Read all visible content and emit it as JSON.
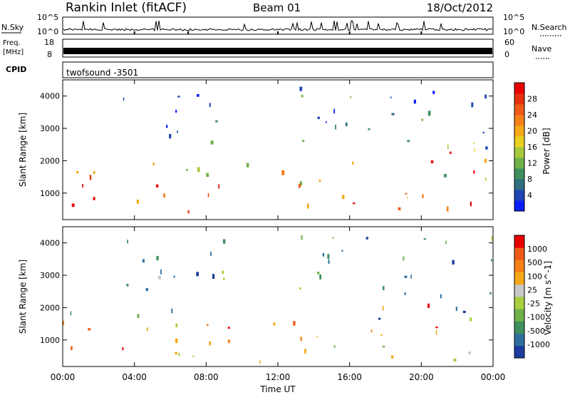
{
  "header": {
    "title": "Rankin Inlet (fitACF)",
    "beam": "Beam 01",
    "date": "18/Oct/2012"
  },
  "strip_panels": {
    "noise": {
      "left_label": "N.Sky",
      "right_label": "N.Search",
      "left_ticks": [
        "10^5",
        "10^0"
      ],
      "right_ticks": [
        "10^5",
        "10^0"
      ],
      "right_legend_line": "dotted"
    },
    "freq": {
      "left_label_line1": "Freq.",
      "left_label_line2": "[MHz]",
      "left_ticks": [
        "18",
        "8"
      ],
      "right_label": "Nave",
      "right_ticks": [
        "60",
        "0"
      ],
      "right_legend_line": "dotted"
    },
    "cpid": {
      "label": "CPID",
      "value": "twofsound -3501"
    }
  },
  "colors": {
    "noise_line": "#000000",
    "freq_band": "#000000",
    "blank": "#ffffff"
  },
  "chart_data": [
    {
      "type": "heatmap",
      "ylabel": "Slant Range [km]",
      "xlabel": "",
      "x_ticks": [
        "00:00",
        "04:00",
        "08:00",
        "12:00",
        "16:00",
        "20:00",
        "00:00"
      ],
      "y_ticks": [
        1000,
        2000,
        3000,
        4000
      ],
      "xlim_hours": [
        0,
        24
      ],
      "ylim_km": [
        180,
        4500
      ],
      "colorbar": {
        "label": "Power [dB]",
        "ticks": [
          "4",
          "8",
          "12",
          "16",
          "20",
          "24",
          "28"
        ],
        "colors": [
          "#0a1eff",
          "#1e46b4",
          "#2f6f7e",
          "#3f8f5e",
          "#6fb04a",
          "#a8c83a",
          "#e8d020",
          "#f5a818",
          "#f58018",
          "#f05a18",
          "#e83010",
          "#e80000"
        ]
      },
      "regions": [
        {
          "h0": 0.0,
          "h1": 9.5,
          "r0": 600,
          "r1": 1700,
          "v": 0.82
        },
        {
          "h0": 0.3,
          "h1": 9.0,
          "r0": 1500,
          "r1": 2100,
          "v": 0.45
        },
        {
          "h0": 4.8,
          "h1": 8.0,
          "r0": 180,
          "r1": 600,
          "v": 0.9
        },
        {
          "h0": 10.0,
          "h1": 12.5,
          "r0": 1700,
          "r1": 2300,
          "v": 0.35
        },
        {
          "h0": 11.5,
          "h1": 14.0,
          "r0": 600,
          "r1": 1900,
          "v": 0.55
        },
        {
          "h0": 13.0,
          "h1": 24.0,
          "r0": 500,
          "r1": 1500,
          "v": 0.8
        },
        {
          "h0": 16.0,
          "h1": 24.0,
          "r0": 1300,
          "r1": 2600,
          "v": 0.5
        },
        {
          "h0": 19.0,
          "h1": 23.0,
          "r0": 1700,
          "r1": 2500,
          "v": 0.85
        },
        {
          "h0": 2.0,
          "h1": 11.0,
          "r0": 2500,
          "r1": 4300,
          "v": 0.2
        },
        {
          "h0": 13.0,
          "h1": 24.0,
          "r0": 2400,
          "r1": 4300,
          "v": 0.2
        }
      ]
    },
    {
      "type": "heatmap",
      "ylabel": "Slant Range [km]",
      "xlabel": "Time UT",
      "x_ticks": [
        "00:00",
        "04:00",
        "08:00",
        "12:00",
        "16:00",
        "20:00",
        "00:00"
      ],
      "y_ticks": [
        1000,
        2000,
        3000,
        4000
      ],
      "xlim_hours": [
        0,
        24
      ],
      "ylim_km": [
        180,
        4500
      ],
      "colorbar": {
        "label": "Velocity [m s^-1]",
        "ticks": [
          "1000",
          "500",
          "100",
          "25",
          "-25",
          "-100",
          "-500",
          "-1000"
        ],
        "colors": [
          "#1e3ca0",
          "#2f6f9e",
          "#3f8f5e",
          "#6fb04a",
          "#a8d040",
          "#c8c8c8",
          "#f5a818",
          "#f58018",
          "#f05a18",
          "#e80000"
        ]
      },
      "regions": [
        {
          "h0": 0.0,
          "h1": 9.5,
          "r0": 600,
          "r1": 1800,
          "v": 0.8
        },
        {
          "h0": 0.0,
          "h1": 9.5,
          "r0": 1500,
          "r1": 2100,
          "v": 0.3
        },
        {
          "h0": 4.8,
          "h1": 11.0,
          "r0": 180,
          "r1": 800,
          "v": 0.55
        },
        {
          "h0": 11.0,
          "h1": 14.5,
          "r0": 700,
          "r1": 2000,
          "v": 0.75
        },
        {
          "h0": 14.0,
          "h1": 24.0,
          "r0": 300,
          "r1": 1400,
          "v": 0.55
        },
        {
          "h0": 16.0,
          "h1": 21.0,
          "r0": 1300,
          "r1": 2200,
          "v": 0.78
        },
        {
          "h0": 17.0,
          "h1": 24.0,
          "r0": 1500,
          "r1": 2600,
          "v": 0.2
        },
        {
          "h0": 2.0,
          "h1": 11.0,
          "r0": 2500,
          "r1": 4300,
          "v": 0.3
        },
        {
          "h0": 13.0,
          "h1": 24.0,
          "r0": 2400,
          "r1": 4300,
          "v": 0.25
        }
      ]
    }
  ]
}
